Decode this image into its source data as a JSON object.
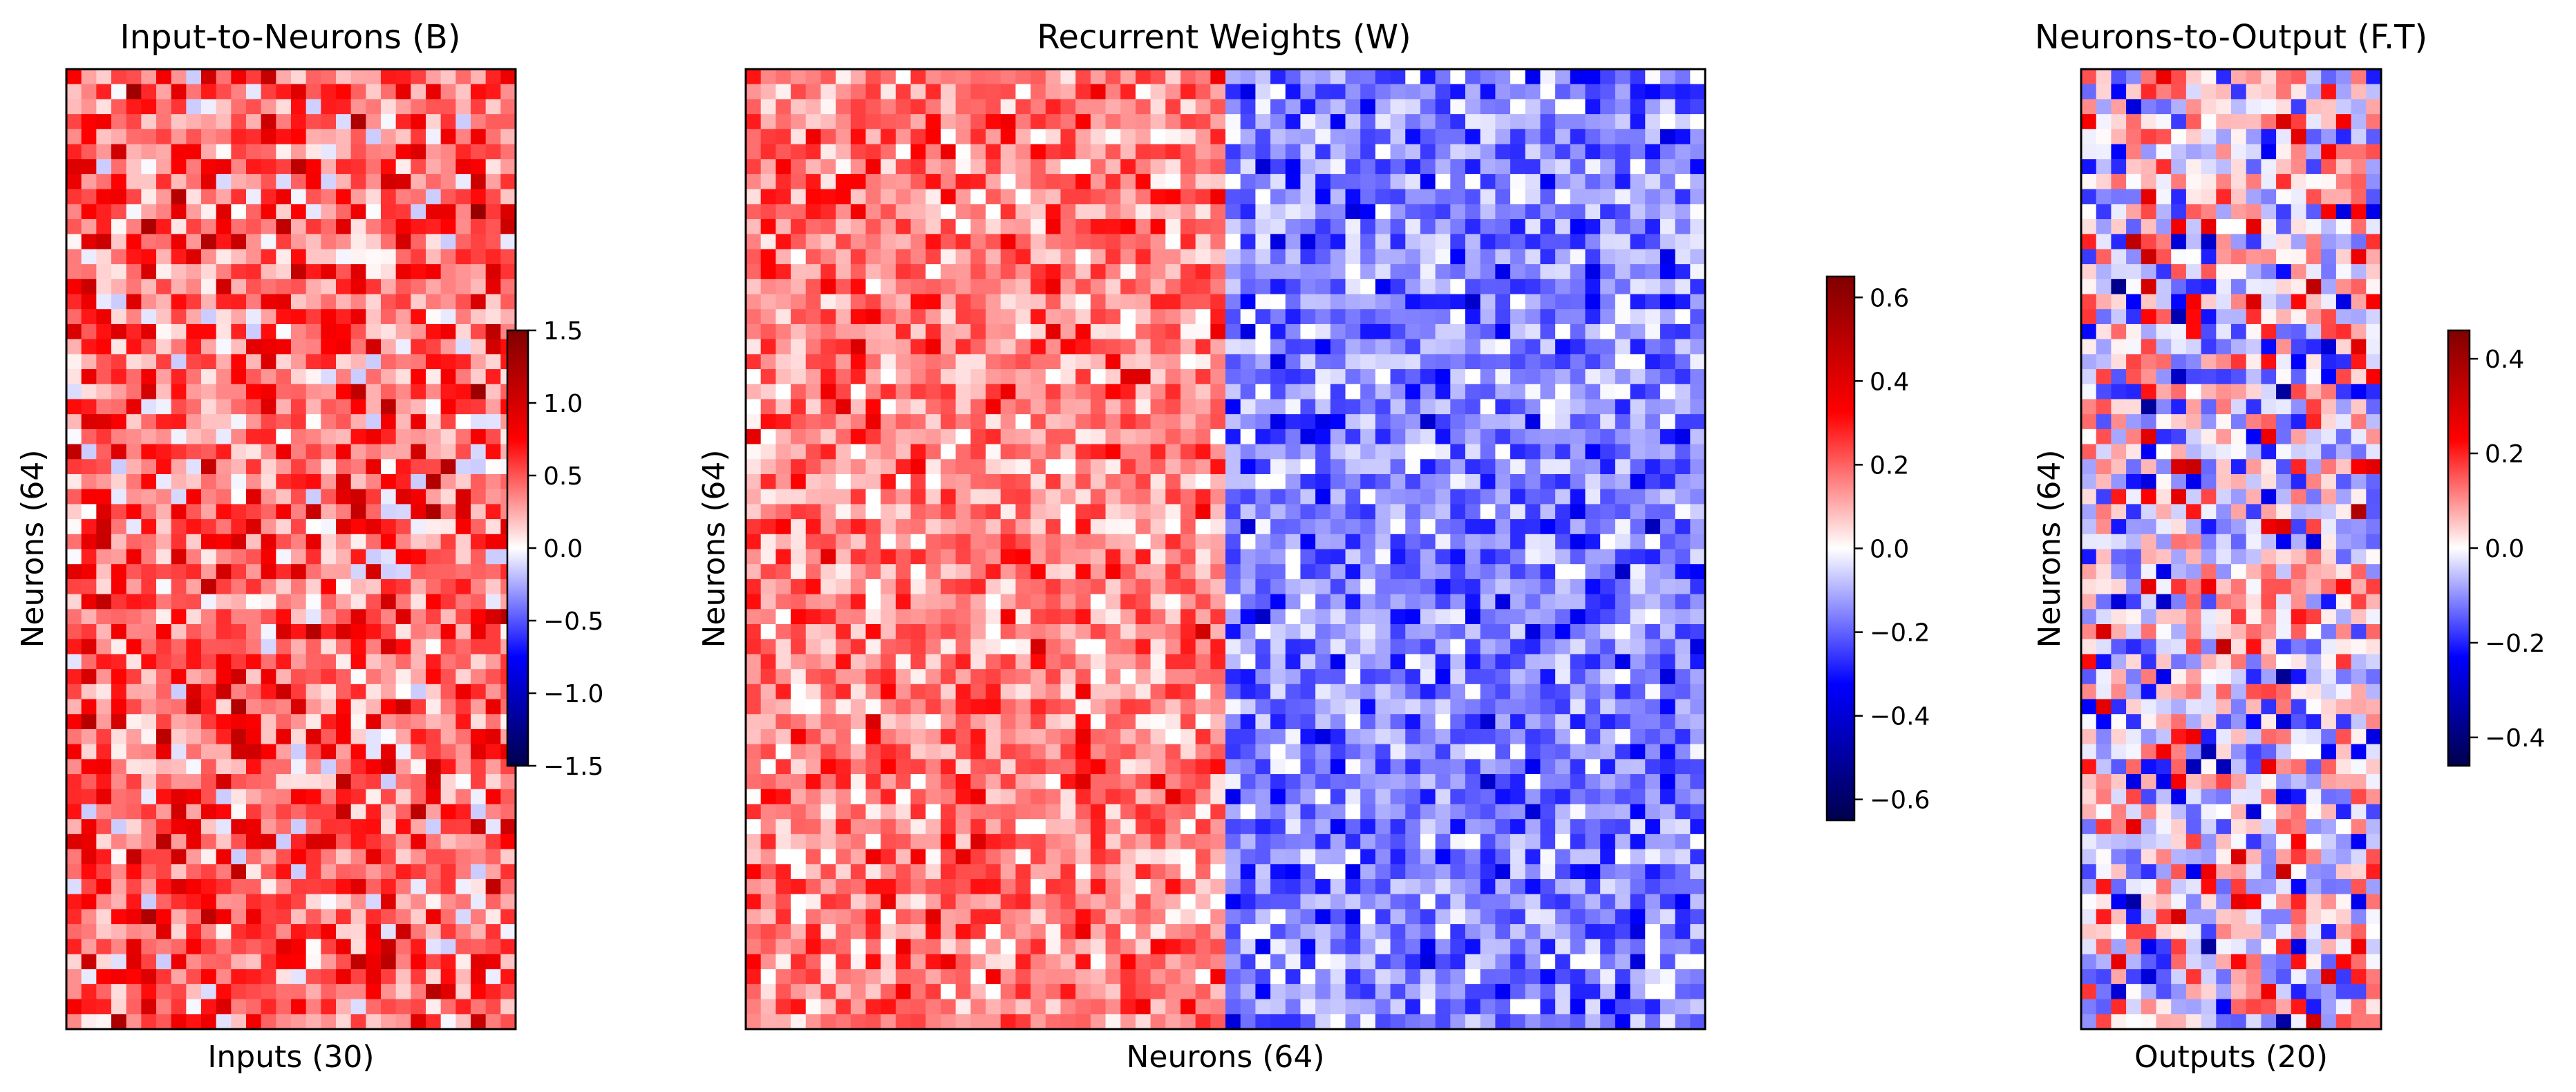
{
  "figure": {
    "background": "#ffffff",
    "colormap": "seismic",
    "colormap_stops": [
      "#00004c",
      "#0000ff",
      "#ffffff",
      "#ff0000",
      "#800000"
    ]
  },
  "chart_data": [
    {
      "type": "heatmap",
      "title": "Input-to-Neurons (B)",
      "xlabel": "Inputs (30)",
      "ylabel": "Neurons (64)",
      "rows": 64,
      "cols": 30,
      "value_range": [
        -1.5,
        1.5
      ],
      "pattern": "mostly positive values across all cells",
      "grid": false,
      "colorbar": {
        "position": "right-overlapping",
        "ticks": [
          1.5,
          1.0,
          0.5,
          0.0,
          -0.5,
          -1.0,
          -1.5
        ],
        "tick_labels": [
          "1.5",
          "1.0",
          "0.5",
          "0.0",
          "−0.5",
          "−1.0",
          "−1.5"
        ]
      }
    },
    {
      "type": "heatmap",
      "title": "Recurrent Weights (W)",
      "xlabel": "Neurons (64)",
      "ylabel": "Neurons (64)",
      "rows": 64,
      "cols": 64,
      "value_range": [
        -0.65,
        0.65
      ],
      "pattern": "left half of columns positive, right half of columns negative",
      "grid": false,
      "colorbar": {
        "position": "right",
        "ticks": [
          0.6,
          0.4,
          0.2,
          0.0,
          -0.2,
          -0.4,
          -0.6
        ],
        "tick_labels": [
          "0.6",
          "0.4",
          "0.2",
          "0.0",
          "−0.2",
          "−0.4",
          "−0.6"
        ]
      }
    },
    {
      "type": "heatmap",
      "title": "Neurons-to-Output (F.T)",
      "xlabel": "Outputs (20)",
      "ylabel": "Neurons (64)",
      "rows": 64,
      "cols": 20,
      "value_range": [
        -0.46,
        0.46
      ],
      "pattern": "mixed positive and negative values",
      "grid": false,
      "colorbar": {
        "position": "right",
        "ticks": [
          0.4,
          0.2,
          0.0,
          -0.2,
          -0.4
        ],
        "tick_labels": [
          "0.4",
          "0.2",
          "0.0",
          "−0.2",
          "−0.4"
        ]
      }
    }
  ]
}
